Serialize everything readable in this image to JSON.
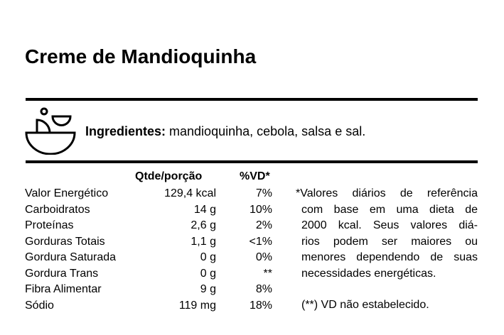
{
  "title": "Creme de Mandioquinha",
  "ingredients": {
    "label": "Ingredientes:",
    "text": " mandioquinha, cebola, salsa e sal.",
    "icon": "bowl-icon"
  },
  "table": {
    "headers": {
      "qty": "Qtde/porção",
      "vd": "%VD*"
    },
    "rows": [
      {
        "name": "Valor Energético",
        "qty": "129,4 kcal",
        "vd": "7%"
      },
      {
        "name": "Carboidratos",
        "qty": "14 g",
        "vd": "10%"
      },
      {
        "name": "Proteínas",
        "qty": "2,6 g",
        "vd": "2%"
      },
      {
        "name": "Gorduras Totais",
        "qty": "1,1 g",
        "vd": "<1%"
      },
      {
        "name": "Gordura Saturada",
        "qty": "0 g",
        "vd": "0%"
      },
      {
        "name": "Gordura Trans",
        "qty": "0 g",
        "vd": "**"
      },
      {
        "name": "Fibra Alimentar",
        "qty": "9 g",
        "vd": "8%"
      },
      {
        "name": "Sódio",
        "qty": "119 mg",
        "vd": "18%"
      }
    ]
  },
  "notes": {
    "lines": [
      "*Valores diários de referência",
      "com base em uma dieta de",
      "2000 kcal. Seus valores diá-",
      "rios podem ser maiores ou",
      "menores dependendo de suas",
      "necessidades energéticas."
    ],
    "footnote": "(**) VD não estabelecido."
  }
}
